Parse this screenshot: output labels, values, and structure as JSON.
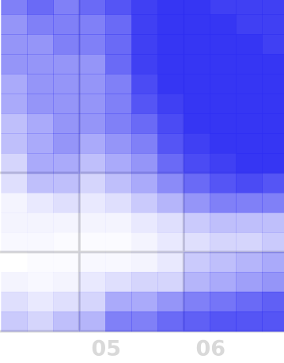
{
  "chart_data": {
    "type": "heatmap",
    "color": "#2b2bf2",
    "grid": true,
    "xlim": [
      4.24,
      6.96
    ],
    "ylim": [
      0,
      4.18
    ],
    "xticks": [
      {
        "value": 5,
        "label": "05"
      },
      {
        "value": 6,
        "label": "06"
      }
    ],
    "yticks": [
      0,
      1,
      2
    ],
    "x": [
      4.25,
      4.5,
      4.75,
      5.0,
      5.25,
      5.5,
      5.75,
      6.0,
      6.25,
      6.5,
      6.75
    ],
    "y": [
      4.0,
      3.75,
      3.5,
      3.25,
      3.0,
      2.75,
      2.5,
      2.25,
      2.0,
      1.75,
      1.5,
      1.25,
      1.0,
      0.75,
      0.5,
      0.25,
      0.0
    ],
    "values": [
      [
        0.6,
        0.7,
        0.6,
        0.7,
        0.8,
        0.9,
        0.95,
        0.95,
        0.9,
        0.9,
        0.9
      ],
      [
        0.5,
        0.6,
        0.6,
        0.6,
        0.7,
        0.9,
        0.95,
        0.95,
        0.95,
        0.9,
        0.9
      ],
      [
        0.5,
        0.5,
        0.6,
        0.6,
        0.7,
        0.9,
        0.95,
        0.95,
        0.95,
        0.95,
        0.9
      ],
      [
        0.5,
        0.5,
        0.5,
        0.5,
        0.7,
        0.9,
        0.95,
        0.95,
        0.95,
        0.95,
        0.95
      ],
      [
        0.4,
        0.5,
        0.5,
        0.5,
        0.6,
        0.85,
        0.95,
        0.95,
        0.95,
        0.95,
        0.95
      ],
      [
        0.4,
        0.5,
        0.5,
        0.5,
        0.6,
        0.8,
        0.9,
        0.95,
        0.95,
        0.95,
        0.95
      ],
      [
        0.3,
        0.4,
        0.5,
        0.5,
        0.6,
        0.7,
        0.85,
        0.95,
        0.95,
        0.95,
        0.95
      ],
      [
        0.3,
        0.4,
        0.5,
        0.4,
        0.5,
        0.6,
        0.8,
        0.9,
        0.95,
        0.95,
        0.95
      ],
      [
        0.2,
        0.4,
        0.4,
        0.3,
        0.4,
        0.5,
        0.7,
        0.85,
        0.9,
        0.95,
        0.95
      ],
      [
        0.15,
        0.3,
        0.3,
        0.2,
        0.3,
        0.4,
        0.55,
        0.7,
        0.8,
        0.85,
        0.8
      ],
      [
        0.05,
        0.1,
        0.15,
        0.1,
        0.15,
        0.25,
        0.35,
        0.5,
        0.6,
        0.6,
        0.6
      ],
      [
        0.05,
        0.05,
        0.05,
        0.05,
        0.05,
        0.1,
        0.15,
        0.25,
        0.3,
        0.3,
        0.3
      ],
      [
        0.03,
        0.03,
        0.02,
        0.02,
        0.02,
        0.05,
        0.1,
        0.15,
        0.2,
        0.2,
        0.25
      ],
      [
        0,
        0.02,
        0.02,
        0.03,
        0.03,
        0.05,
        0.1,
        0.25,
        0.3,
        0.35,
        0.4
      ],
      [
        0.05,
        0.03,
        0.05,
        0.1,
        0.15,
        0.2,
        0.2,
        0.35,
        0.4,
        0.45,
        0.5
      ],
      [
        0.15,
        0.1,
        0.15,
        0.2,
        0.4,
        0.4,
        0.5,
        0.6,
        0.65,
        0.7,
        0.75
      ],
      [
        0.25,
        0.2,
        0.3,
        0.35,
        0.6,
        0.6,
        0.7,
        0.75,
        0.8,
        0.8,
        0.8
      ]
    ]
  }
}
